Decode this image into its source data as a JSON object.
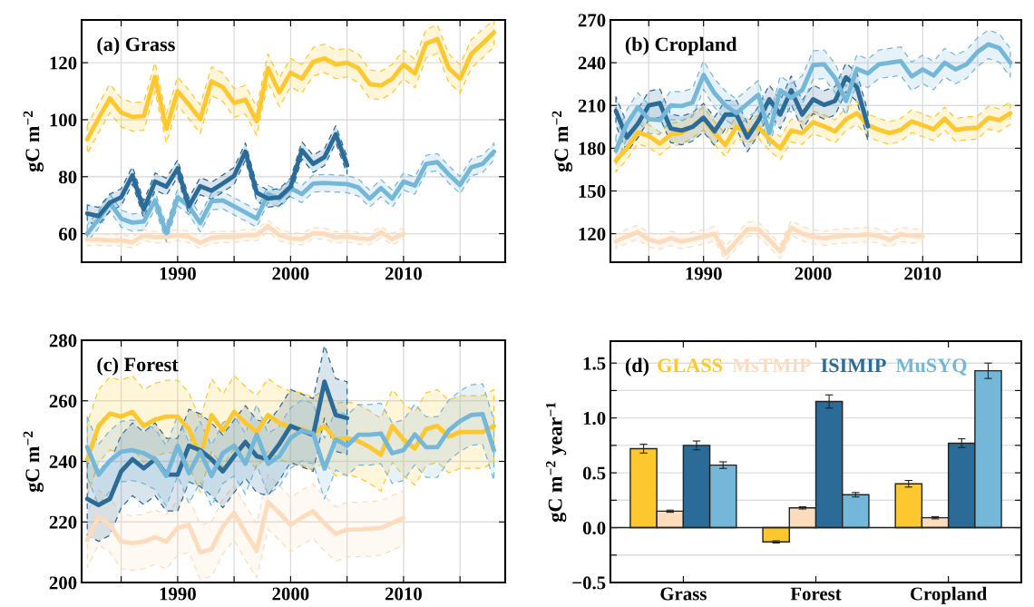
{
  "chart_data": [
    {
      "type": "line",
      "title": "(a) Grass",
      "ylabel": "gC m$^{−2}$",
      "xlim": [
        1981.5,
        2019
      ],
      "ylim": [
        50,
        135
      ],
      "grid": true,
      "xticks": [
        {
          "value": 1985,
          "label": null
        },
        1990,
        {
          "value": 1995,
          "label": null
        },
        2000,
        {
          "value": 2005,
          "label": null
        },
        2010,
        {
          "value": 2015,
          "label": null
        }
      ],
      "yticks": [
        60,
        80,
        100,
        120
      ],
      "x": [
        1982,
        1983,
        1984,
        1985,
        1986,
        1987,
        1988,
        1989,
        1990,
        1991,
        1992,
        1993,
        1994,
        1995,
        1996,
        1997,
        1998,
        1999,
        2000,
        2001,
        2002,
        2003,
        2004,
        2005,
        2006,
        2007,
        2008,
        2009,
        2010,
        2011,
        2012,
        2013,
        2014,
        2015,
        2016,
        2017,
        2018
      ],
      "series": [
        {
          "color": "#fdc82f",
          "values": [
            93.1,
            100.5,
            107.5,
            102.5,
            101,
            101.3,
            115,
            96.8,
            110,
            105.3,
            100.2,
            113.5,
            111.4,
            105.9,
            107,
            99.5,
            118.1,
            109.6,
            116.5,
            114.4,
            120.3,
            121.5,
            119.4,
            120,
            118.1,
            112.5,
            112,
            114.4,
            119.4,
            116.2,
            126.7,
            128.3,
            118.1,
            114.4,
            123.1,
            126.7,
            130.6
          ],
          "lower": [
            88.1,
            95.5,
            102.5,
            97.5,
            96,
            96.3,
            110,
            91.8,
            105,
            100.3,
            95.2,
            108.5,
            106.4,
            100.9,
            102,
            94.5,
            113.1,
            104.6,
            111.5,
            109.4,
            115.3,
            116.5,
            114.4,
            115,
            113.1,
            107.5,
            107,
            109.4,
            114.4,
            111.2,
            121.7,
            123.3,
            113.1,
            109.4,
            118.1,
            121.7,
            125.6
          ],
          "upper": [
            98.1,
            105.5,
            112.5,
            107.5,
            106,
            106.3,
            120,
            101.8,
            115,
            110.3,
            105.2,
            118.5,
            116.4,
            110.9,
            112,
            104.5,
            123.1,
            114.6,
            121.5,
            119.4,
            125.3,
            126.5,
            124.4,
            125,
            123.1,
            117.5,
            117,
            119.4,
            124.4,
            121.2,
            131.7,
            133.3,
            123.1,
            119.4,
            128.1,
            131.7,
            135
          ]
        },
        {
          "color": "#fddcbd",
          "values": [
            57.9,
            57.9,
            57.7,
            57.7,
            57,
            59.5,
            58.7,
            58.9,
            59.5,
            58.9,
            56.8,
            58.6,
            58.9,
            58.9,
            59.5,
            59.5,
            62.7,
            59.5,
            58.4,
            58.1,
            60.2,
            60,
            58.7,
            59.1,
            58.4,
            58.1,
            60.5,
            58.1,
            60,
            null,
            null,
            null,
            null,
            null,
            null,
            null,
            null
          ],
          "lower": [
            55.9,
            55.9,
            55.7,
            55.7,
            55,
            57.5,
            56.7,
            56.9,
            57.5,
            56.9,
            54.8,
            56.6,
            56.9,
            56.9,
            57.5,
            57.5,
            60.7,
            57.5,
            56.4,
            56.1,
            58.2,
            58,
            56.7,
            57.1,
            56.4,
            56.1,
            58.5,
            56.1,
            58,
            null,
            null,
            null,
            null,
            null,
            null,
            null,
            null
          ],
          "upper": [
            59.9,
            59.9,
            59.7,
            59.7,
            59,
            61.5,
            60.7,
            60.9,
            61.5,
            60.9,
            58.8,
            60.6,
            60.9,
            60.9,
            61.5,
            61.5,
            64.7,
            61.5,
            60.4,
            60.1,
            62.2,
            62,
            60.7,
            61.1,
            60.4,
            60.1,
            62.5,
            60.1,
            62,
            null,
            null,
            null,
            null,
            null,
            null,
            null,
            null
          ]
        },
        {
          "color": "#74b7d9",
          "values": [
            60,
            65.1,
            70.9,
            65.3,
            63.9,
            64.3,
            71.7,
            60.2,
            72.8,
            69.6,
            63.7,
            71.4,
            71.7,
            69.6,
            67.5,
            65.3,
            73.9,
            72.3,
            76,
            73.9,
            77.6,
            77.8,
            77.6,
            77.4,
            76.2,
            72.3,
            76,
            72.3,
            78.3,
            76.9,
            84.5,
            85.1,
            80.8,
            77.1,
            83.3,
            84.5,
            88.8
          ],
          "lower": [
            57,
            62.1,
            67.9,
            62.3,
            60.9,
            61.3,
            68.7,
            57.2,
            69.8,
            66.6,
            60.7,
            68.4,
            68.7,
            66.6,
            64.5,
            62.3,
            70.9,
            69.3,
            73,
            70.9,
            74.6,
            74.8,
            74.6,
            74.4,
            73.2,
            69.3,
            73,
            69.3,
            75.3,
            73.9,
            81.5,
            82.1,
            77.8,
            74.1,
            80.3,
            81.5,
            85.8
          ],
          "upper": [
            63,
            68.1,
            73.9,
            68.3,
            66.9,
            67.3,
            74.7,
            63.2,
            75.8,
            72.6,
            66.7,
            74.4,
            74.7,
            72.6,
            70.5,
            68.3,
            76.9,
            75.3,
            79,
            76.9,
            80.6,
            80.8,
            80.6,
            80.4,
            79.2,
            75.3,
            79,
            75.3,
            81.3,
            79.9,
            87.5,
            88.1,
            83.8,
            80.1,
            86.3,
            87.5,
            91.8
          ]
        },
        {
          "color": "#2a6b98",
          "values": [
            67.1,
            66.2,
            70.9,
            72.8,
            80.5,
            68.5,
            78.3,
            76.5,
            82.9,
            69.6,
            76.7,
            75.1,
            77.6,
            80.3,
            88.8,
            74.4,
            72.3,
            72.8,
            76.5,
            89.3,
            84.5,
            86.9,
            94.9,
            84,
            null,
            null,
            null,
            null,
            null,
            null,
            null,
            null,
            null,
            null,
            null,
            null,
            null
          ],
          "lower": [
            64.1,
            63.2,
            67.9,
            69.8,
            77.5,
            65.5,
            75.3,
            73.5,
            79.9,
            66.6,
            73.7,
            72.1,
            74.6,
            77.3,
            85.8,
            71.4,
            69.3,
            69.8,
            73.5,
            86.3,
            81.5,
            83.9,
            91.9,
            81,
            null,
            null,
            null,
            null,
            null,
            null,
            null,
            null,
            null,
            null,
            null,
            null,
            null
          ],
          "upper": [
            70.1,
            69.2,
            73.9,
            75.8,
            83.5,
            71.5,
            81.3,
            79.5,
            85.9,
            72.6,
            79.7,
            78.1,
            80.6,
            83.3,
            91.8,
            77.4,
            75.3,
            75.8,
            79.5,
            92.3,
            87.5,
            89.9,
            97.9,
            87,
            null,
            null,
            null,
            null,
            null,
            null,
            null,
            null,
            null,
            null,
            null,
            null,
            null
          ]
        }
      ]
    },
    {
      "type": "line",
      "title": "(b) Cropland",
      "ylabel": "gC m$^{−2}$",
      "xlim": [
        1981.5,
        2019
      ],
      "ylim": [
        100,
        270
      ],
      "grid": true,
      "xticks": [
        {
          "value": 1985,
          "label": null
        },
        1990,
        {
          "value": 1995,
          "label": null
        },
        2000,
        {
          "value": 2005,
          "label": null
        },
        2010,
        {
          "value": 2015,
          "label": null
        }
      ],
      "yticks": [
        120,
        150,
        180,
        210,
        240,
        270
      ],
      "x": [
        1982,
        1983,
        1984,
        1985,
        1986,
        1987,
        1988,
        1989,
        1990,
        1991,
        1992,
        1993,
        1994,
        1995,
        1996,
        1997,
        1998,
        1999,
        2000,
        2001,
        2002,
        2003,
        2004,
        2005,
        2006,
        2007,
        2008,
        2009,
        2010,
        2011,
        2012,
        2013,
        2014,
        2015,
        2016,
        2017,
        2018
      ],
      "series": [
        {
          "color": "#fdc82f",
          "values": [
            171.4,
            180,
            191.1,
            188.6,
            183.2,
            189.6,
            190.7,
            195.4,
            200.8,
            190.7,
            182.1,
            195,
            191.8,
            195,
            186.4,
            180,
            192.4,
            190.7,
            198.2,
            195.4,
            191.8,
            200.4,
            204.6,
            196.1,
            192.9,
            190.7,
            192.9,
            198.9,
            196.1,
            193.3,
            200.8,
            192.9,
            193.9,
            194.4,
            201.4,
            199.7,
            204.6
          ],
          "lower": [
            163.4,
            172,
            183.1,
            180.6,
            175.2,
            181.6,
            182.7,
            187.4,
            192.8,
            182.7,
            174.1,
            187,
            183.8,
            187,
            178.4,
            172,
            184.4,
            182.7,
            190.2,
            187.4,
            183.8,
            192.4,
            196.6,
            188.1,
            184.9,
            182.7,
            184.9,
            190.9,
            188.1,
            185.3,
            192.8,
            184.9,
            185.9,
            186.4,
            193.4,
            191.7,
            196.6
          ],
          "upper": [
            179.4,
            188,
            199.1,
            196.6,
            191.2,
            197.6,
            198.7,
            203.4,
            208.8,
            198.7,
            190.1,
            203,
            199.8,
            203,
            194.4,
            188,
            200.4,
            198.7,
            206.2,
            203.4,
            199.8,
            208.4,
            212.6,
            204.1,
            200.9,
            198.7,
            200.9,
            206.9,
            204.1,
            201.3,
            208.8,
            200.9,
            201.9,
            202.4,
            209.4,
            207.7,
            212.6
          ]
        },
        {
          "color": "#fddcbd",
          "values": [
            114.6,
            118.2,
            121.1,
            115.7,
            114,
            116.8,
            114.6,
            116.1,
            117.9,
            120,
            106.1,
            114.6,
            123.2,
            123.2,
            115.7,
            107.6,
            124.3,
            120,
            117.9,
            116.8,
            117.9,
            118.5,
            118.9,
            119.6,
            118.3,
            115.7,
            119.6,
            118.5,
            118.3,
            null,
            null,
            null,
            null,
            null,
            null,
            null,
            null
          ],
          "lower": [
            109.6,
            113.2,
            116.1,
            110.7,
            109,
            111.8,
            109.6,
            111.1,
            112.9,
            115,
            101.1,
            109.6,
            118.2,
            118.2,
            110.7,
            102.6,
            119.3,
            115,
            112.9,
            111.8,
            112.9,
            113.5,
            113.9,
            114.6,
            113.3,
            110.7,
            114.6,
            113.5,
            113.3,
            null,
            null,
            null,
            null,
            null,
            null,
            null,
            null
          ],
          "upper": [
            119.6,
            123.2,
            126.1,
            120.7,
            119,
            121.8,
            119.6,
            121.1,
            122.9,
            125,
            111.1,
            119.6,
            128.2,
            128.2,
            120.7,
            112.6,
            129.3,
            125,
            122.9,
            121.8,
            122.9,
            123.5,
            123.9,
            124.6,
            123.3,
            120.7,
            124.6,
            123.5,
            123.3,
            null,
            null,
            null,
            null,
            null,
            null,
            null,
            null
          ]
        },
        {
          "color": "#2a6b98",
          "values": [
            206.1,
            187.5,
            197.1,
            210,
            211.7,
            193.9,
            192.4,
            195,
            201.4,
            191.8,
            203.6,
            203.6,
            187.5,
            199.3,
            214.3,
            203.6,
            220.7,
            203.6,
            214.3,
            210.4,
            213.2,
            229.7,
            222.9,
            195.4,
            null,
            null,
            null,
            null,
            null,
            null,
            null,
            null,
            null,
            null,
            null,
            null,
            null
          ],
          "lower": [
            196.1,
            177.5,
            187.1,
            200,
            201.7,
            183.9,
            182.4,
            185,
            191.4,
            181.8,
            193.6,
            193.6,
            177.5,
            189.3,
            204.3,
            193.6,
            210.7,
            193.6,
            204.3,
            200.4,
            203.2,
            219.7,
            212.9,
            185.4,
            null,
            null,
            null,
            null,
            null,
            null,
            null,
            null,
            null,
            null,
            null,
            null,
            null
          ],
          "upper": [
            216.1,
            197.5,
            207.1,
            220,
            221.7,
            203.9,
            202.4,
            205,
            211.4,
            201.8,
            213.6,
            213.6,
            197.5,
            209.3,
            224.3,
            213.6,
            230.7,
            213.6,
            224.3,
            220.4,
            223.2,
            239.7,
            232.9,
            205.4,
            null,
            null,
            null,
            null,
            null,
            null,
            null,
            null,
            null,
            null,
            null,
            null,
            null
          ]
        },
        {
          "color": "#74b7d9",
          "values": [
            178.3,
            197.1,
            208.9,
            200.4,
            199.7,
            210,
            209.6,
            212.1,
            231.4,
            218.6,
            210,
            204.6,
            211.1,
            217.5,
            190.7,
            220.7,
            215.4,
            220.7,
            238.3,
            238.9,
            229.3,
            213.2,
            235.7,
            232.5,
            238.9,
            240,
            241.1,
            230.4,
            235.3,
            231,
            240,
            235.3,
            238.9,
            247.5,
            252.9,
            250.3,
            240
          ],
          "lower": [
            168.3,
            187.1,
            198.9,
            190.4,
            189.7,
            200,
            199.6,
            202.1,
            221.4,
            208.6,
            200,
            194.6,
            201.1,
            207.5,
            180.7,
            210.7,
            205.4,
            210.7,
            228.3,
            228.9,
            219.3,
            203.2,
            225.7,
            222.5,
            228.9,
            230,
            231.1,
            220.4,
            225.3,
            221,
            230,
            225.3,
            228.9,
            237.5,
            242.9,
            240.3,
            230
          ],
          "upper": [
            188.3,
            207.1,
            218.9,
            210.4,
            209.7,
            220,
            219.6,
            222.1,
            241.4,
            228.6,
            220,
            214.6,
            221.1,
            227.5,
            200.7,
            230.7,
            225.4,
            230.7,
            248.3,
            248.9,
            239.3,
            223.2,
            245.7,
            242.5,
            248.9,
            250,
            251.1,
            240.4,
            245.3,
            241,
            250,
            245.3,
            248.9,
            257.5,
            262.9,
            260.3,
            250
          ]
        }
      ]
    },
    {
      "type": "line",
      "title": "(c) Forest",
      "ylabel": "gC m$^{−2}$",
      "xlim": [
        1981.5,
        2019
      ],
      "ylim": [
        200,
        280
      ],
      "grid": true,
      "xticks": [
        {
          "value": 1985,
          "label": null
        },
        1990,
        {
          "value": 1995,
          "label": null
        },
        2000,
        {
          "value": 2005,
          "label": null
        },
        2010,
        {
          "value": 2015,
          "label": null
        }
      ],
      "yticks": [
        200,
        220,
        240,
        260,
        280
      ],
      "x": [
        1982,
        1983,
        1984,
        1985,
        1986,
        1987,
        1988,
        1989,
        1990,
        1991,
        1992,
        1993,
        1994,
        1995,
        1996,
        1997,
        1998,
        1999,
        2000,
        2001,
        2002,
        2003,
        2004,
        2005,
        2006,
        2007,
        2008,
        2009,
        2010,
        2011,
        2012,
        2013,
        2014,
        2015,
        2016,
        2017,
        2018
      ],
      "series": [
        {
          "color": "#fdc82f",
          "values": [
            240.7,
            251.7,
            255.8,
            254.8,
            256.3,
            251.7,
            253.8,
            254.8,
            254.8,
            250.7,
            241.7,
            255.3,
            250.2,
            256.3,
            252.7,
            249.7,
            255.3,
            252.7,
            251.2,
            250.7,
            249.2,
            251.7,
            247.2,
            247.7,
            246.7,
            244.7,
            242.2,
            251.7,
            247.2,
            244.2,
            250.7,
            251.7,
            248.2,
            249.7,
            249.7,
            249.7,
            251.7
          ],
          "lower": [
            228.7,
            239.7,
            243.8,
            242.8,
            244.3,
            239.7,
            241.8,
            242.8,
            242.8,
            238.7,
            229.7,
            243.3,
            238.2,
            244.3,
            240.7,
            237.7,
            243.3,
            240.7,
            239.2,
            238.7,
            237.2,
            239.7,
            235.2,
            235.7,
            234.7,
            232.7,
            230.2,
            239.7,
            235.2,
            232.2,
            238.7,
            239.7,
            236.2,
            237.7,
            237.7,
            237.7,
            239.7
          ],
          "upper": [
            252.7,
            263.7,
            267.8,
            266.8,
            268.3,
            263.7,
            265.8,
            266.8,
            266.8,
            262.7,
            253.7,
            267.3,
            262.2,
            268.3,
            264.7,
            261.7,
            267.3,
            264.7,
            263.2,
            262.7,
            261.2,
            263.7,
            259.2,
            259.7,
            258.7,
            256.7,
            254.2,
            263.7,
            259.2,
            256.2,
            262.7,
            263.7,
            260.2,
            261.7,
            261.7,
            261.7,
            263.7
          ]
        },
        {
          "color": "#fddcbd",
          "values": [
            214,
            221.5,
            219,
            213.5,
            213,
            213.5,
            215,
            213.5,
            218,
            219,
            210,
            211,
            218.5,
            223,
            216.5,
            210.5,
            226.6,
            223,
            219,
            221.5,
            223.5,
            219.5,
            216,
            217.5,
            217.5,
            217.7,
            218,
            219.7,
            221.3,
            null,
            null,
            null,
            null,
            null,
            null,
            null,
            null
          ],
          "lower": [
            205,
            212.5,
            210,
            204.5,
            204,
            204.5,
            206,
            204.5,
            209,
            210,
            201,
            202,
            209.5,
            214,
            207.5,
            201.5,
            217.6,
            214,
            210,
            212.5,
            214.5,
            210.5,
            207,
            208.5,
            208.5,
            208.7,
            209,
            210.7,
            212.3,
            null,
            null,
            null,
            null,
            null,
            null,
            null,
            null
          ],
          "upper": [
            223,
            230.5,
            228,
            222.5,
            222,
            222.5,
            224,
            222.5,
            227,
            228,
            219,
            220,
            227.5,
            232,
            225.5,
            219.5,
            235.6,
            232,
            228,
            230.5,
            232.5,
            228.5,
            225,
            226.5,
            226.5,
            226.7,
            227,
            228.7,
            230.3,
            null,
            null,
            null,
            null,
            null,
            null,
            null,
            null
          ]
        },
        {
          "color": "#2a6b98",
          "values": [
            227.6,
            225.6,
            227.6,
            236.7,
            240.7,
            237.7,
            240.7,
            235.6,
            235.6,
            245.2,
            243.7,
            240.7,
            236.7,
            241.7,
            246.4,
            241.7,
            240.7,
            245.7,
            251.7,
            250.2,
            248.7,
            266.3,
            255.3,
            254.3,
            null,
            null,
            null,
            null,
            null,
            null,
            null,
            null,
            null,
            null,
            null,
            null,
            null
          ],
          "lower": [
            215.6,
            213.6,
            215.6,
            224.7,
            228.7,
            225.7,
            228.7,
            223.6,
            223.6,
            233.2,
            231.7,
            228.7,
            224.7,
            229.7,
            234.4,
            229.7,
            228.7,
            233.7,
            239.7,
            238.2,
            236.7,
            254.3,
            243.3,
            242.3,
            null,
            null,
            null,
            null,
            null,
            null,
            null,
            null,
            null,
            null,
            null,
            null,
            null
          ],
          "upper": [
            239.6,
            237.6,
            239.6,
            248.7,
            252.7,
            249.7,
            252.7,
            247.6,
            247.6,
            257.2,
            255.7,
            252.7,
            248.7,
            253.7,
            258.4,
            253.7,
            252.7,
            257.7,
            263.7,
            262.2,
            260.7,
            278.3,
            267.3,
            266.3,
            null,
            null,
            null,
            null,
            null,
            null,
            null,
            null,
            null,
            null,
            null,
            null,
            null
          ]
        },
        {
          "color": "#74b7d9",
          "values": [
            244.7,
            235.6,
            240.2,
            243.2,
            243.7,
            242.7,
            240.7,
            235.2,
            245.2,
            236.1,
            243.2,
            235.2,
            242.7,
            245.2,
            239.2,
            248.8,
            239.2,
            241.7,
            247.7,
            250.2,
            249.2,
            237.6,
            247.2,
            245.2,
            248.8,
            248.8,
            249.2,
            242.7,
            243.7,
            248.9,
            244.7,
            244.7,
            250.2,
            253.3,
            255.3,
            255.6,
            243.7
          ],
          "lower": [
            234.7,
            225.6,
            230.2,
            233.2,
            233.7,
            232.7,
            230.7,
            225.2,
            235.2,
            226.1,
            233.2,
            225.2,
            232.7,
            235.2,
            229.2,
            238.8,
            229.2,
            231.7,
            237.7,
            240.2,
            239.2,
            227.6,
            237.2,
            235.2,
            238.8,
            238.8,
            239.2,
            232.7,
            233.7,
            238.9,
            234.7,
            234.7,
            240.2,
            243.3,
            245.3,
            245.6,
            233.7
          ],
          "upper": [
            254.7,
            245.6,
            250.2,
            253.2,
            253.7,
            252.7,
            250.7,
            245.2,
            255.2,
            246.1,
            253.2,
            245.2,
            252.7,
            255.2,
            249.2,
            258.8,
            249.2,
            251.7,
            257.7,
            260.2,
            259.2,
            247.6,
            257.2,
            255.2,
            258.8,
            258.8,
            259.2,
            252.7,
            253.7,
            258.9,
            254.7,
            254.7,
            260.2,
            263.3,
            265.3,
            265.6,
            253.7
          ]
        }
      ]
    },
    {
      "type": "bar",
      "title": "(d)",
      "ylabel": "gC m$^{−2}$ year$^{−1}$",
      "ylim": [
        -0.5,
        1.7
      ],
      "grid": "y",
      "legend": "top left",
      "yticks": [
        {
          "value": -0.5,
          "label": "−0.5"
        },
        {
          "value": -0.25,
          "label": null
        },
        {
          "value": 0,
          "label": "0.0"
        },
        {
          "value": 0.25,
          "label": null
        },
        0.5,
        {
          "value": 0.75,
          "label": null
        },
        {
          "value": 1,
          "label": "1.0"
        },
        {
          "value": 1.25,
          "label": null
        },
        1.5
      ],
      "categories": [
        "Grass",
        "Forest",
        "Cropland"
      ],
      "series": [
        {
          "name": "GLASS",
          "color": "#fdc82f",
          "values": [
            0.72,
            -0.13,
            0.4
          ],
          "errors": [
            0.04,
            0.01,
            0.03
          ]
        },
        {
          "name": "MsTMIP",
          "color": "#fddcbd",
          "values": [
            0.15,
            0.18,
            0.09
          ],
          "errors": [
            0.01,
            0.01,
            0.01
          ]
        },
        {
          "name": "ISIMIP",
          "color": "#2a6b98",
          "values": [
            0.75,
            1.15,
            0.77
          ],
          "errors": [
            0.04,
            0.06,
            0.04
          ]
        },
        {
          "name": "MuSYQ",
          "color": "#74b7d9",
          "values": [
            0.57,
            0.3,
            1.43
          ],
          "errors": [
            0.03,
            0.02,
            0.07
          ]
        }
      ]
    }
  ]
}
